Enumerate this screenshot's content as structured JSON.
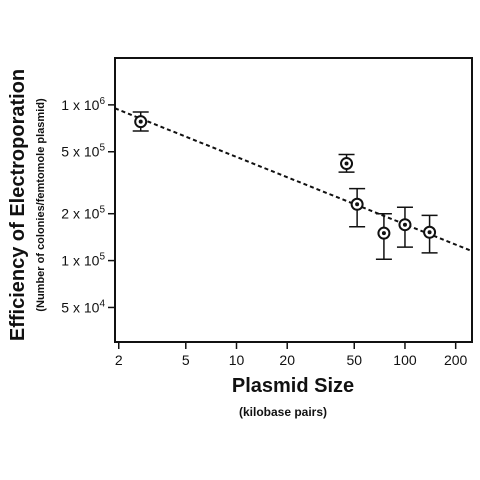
{
  "chart_data": {
    "type": "scatter",
    "x_scale": "log",
    "y_scale": "log",
    "xlabel": "Plasmid Size",
    "xlabel_sub": "(kilobase pairs)",
    "ylabel": "Efficiency of Electroporation",
    "ylabel_sub": "(Number of colonies/femtomole plasmid)",
    "xlim": [
      1.9,
      250
    ],
    "ylim": [
      30000,
      2000000
    ],
    "x_ticks": [
      {
        "value": 2,
        "label": "2"
      },
      {
        "value": 5,
        "label": "5"
      },
      {
        "value": 10,
        "label": "10"
      },
      {
        "value": 20,
        "label": "20"
      },
      {
        "value": 50,
        "label": "50"
      },
      {
        "value": 100,
        "label": "100"
      },
      {
        "value": 200,
        "label": "200"
      }
    ],
    "y_ticks": [
      {
        "value": 1000000,
        "mant": "1 x 10",
        "exp": "6"
      },
      {
        "value": 500000,
        "mant": "5 x 10",
        "exp": "5"
      },
      {
        "value": 200000,
        "mant": "2 x 10",
        "exp": "5"
      },
      {
        "value": 100000,
        "mant": "1 x 10",
        "exp": "5"
      },
      {
        "value": 50000,
        "mant": "5 x 10",
        "exp": "4"
      }
    ],
    "points": [
      {
        "x": 2.7,
        "y": 780000,
        "y_low": 680000,
        "y_high": 900000
      },
      {
        "x": 45,
        "y": 420000,
        "y_low": 370000,
        "y_high": 480000
      },
      {
        "x": 52,
        "y": 230000,
        "y_low": 165000,
        "y_high": 290000
      },
      {
        "x": 75,
        "y": 150000,
        "y_low": 102000,
        "y_high": 200000
      },
      {
        "x": 100,
        "y": 170000,
        "y_low": 122000,
        "y_high": 220000
      },
      {
        "x": 140,
        "y": 152000,
        "y_low": 112000,
        "y_high": 195000
      }
    ],
    "trendline": {
      "style": "dashed",
      "x": [
        1.9,
        250
      ],
      "y": [
        950000,
        115000
      ]
    },
    "grid": false,
    "legend": "none"
  }
}
